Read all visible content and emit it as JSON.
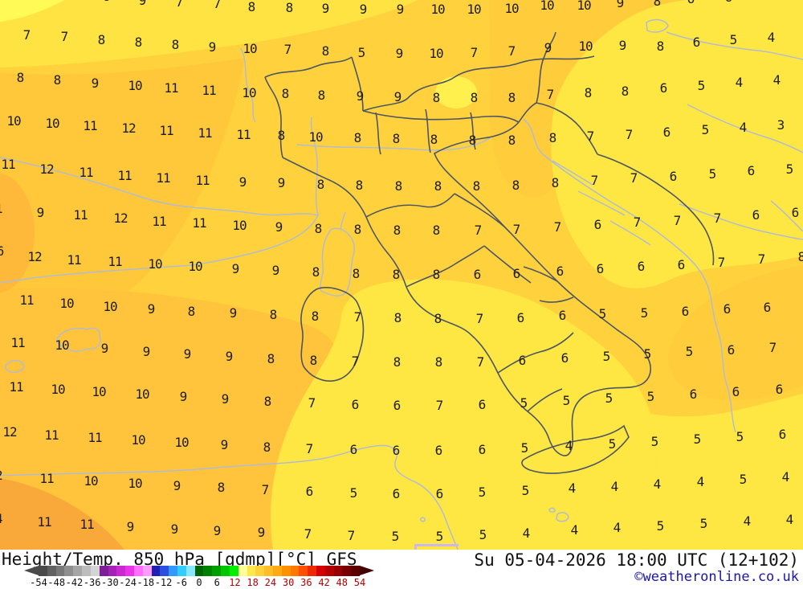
{
  "map": {
    "description": "850 hPa temperature field over Italy and central Mediterranean, GFS model",
    "colors": {
      "base_yellow": "#FFD23D",
      "bright_yellow": "#FFE743",
      "pale_yellow": "#FFFA55",
      "amber": "#FFC83B",
      "deep_amber": "#F8A93A",
      "border_dark": "#4d5563",
      "coast_light": "#b3bccf",
      "number_color": "#1c1c1c"
    },
    "temps": [
      [
        9,
        133,
        -4
      ],
      [
        9,
        177,
        1
      ],
      [
        7,
        223,
        3
      ],
      [
        7,
        270,
        5
      ],
      [
        8,
        313,
        9
      ],
      [
        8,
        360,
        10
      ],
      [
        9,
        405,
        11
      ],
      [
        9,
        452,
        12
      ],
      [
        9,
        498,
        12
      ],
      [
        10,
        545,
        12
      ],
      [
        10,
        590,
        12
      ],
      [
        10,
        637,
        11
      ],
      [
        10,
        681,
        7
      ],
      [
        10,
        727,
        7
      ],
      [
        9,
        772,
        4
      ],
      [
        8,
        818,
        2
      ],
      [
        6,
        860,
        -1
      ],
      [
        6,
        907,
        -3
      ],
      [
        7,
        33,
        44
      ],
      [
        7,
        80,
        46
      ],
      [
        8,
        126,
        50
      ],
      [
        8,
        172,
        53
      ],
      [
        8,
        218,
        56
      ],
      [
        9,
        264,
        59
      ],
      [
        10,
        311,
        61
      ],
      [
        7,
        358,
        62
      ],
      [
        8,
        405,
        64
      ],
      [
        5,
        450,
        66
      ],
      [
        9,
        497,
        67
      ],
      [
        10,
        543,
        67
      ],
      [
        7,
        590,
        66
      ],
      [
        7,
        637,
        64
      ],
      [
        9,
        682,
        60
      ],
      [
        10,
        729,
        58
      ],
      [
        9,
        775,
        57
      ],
      [
        8,
        822,
        58
      ],
      [
        6,
        867,
        53
      ],
      [
        5,
        913,
        50
      ],
      [
        4,
        960,
        47
      ],
      [
        8,
        25,
        97
      ],
      [
        8,
        71,
        100
      ],
      [
        9,
        118,
        104
      ],
      [
        10,
        168,
        107
      ],
      [
        11,
        213,
        110
      ],
      [
        11,
        260,
        113
      ],
      [
        10,
        310,
        116
      ],
      [
        8,
        355,
        117
      ],
      [
        8,
        400,
        119
      ],
      [
        9,
        448,
        120
      ],
      [
        9,
        495,
        121
      ],
      [
        8,
        543,
        122
      ],
      [
        8,
        590,
        122
      ],
      [
        8,
        637,
        122
      ],
      [
        7,
        685,
        118
      ],
      [
        8,
        732,
        116
      ],
      [
        8,
        778,
        114
      ],
      [
        6,
        826,
        110
      ],
      [
        5,
        873,
        107
      ],
      [
        4,
        920,
        103
      ],
      [
        4,
        967,
        100
      ],
      [
        10,
        17,
        151
      ],
      [
        10,
        65,
        154
      ],
      [
        11,
        112,
        157
      ],
      [
        12,
        160,
        160
      ],
      [
        11,
        207,
        163
      ],
      [
        11,
        255,
        166
      ],
      [
        11,
        303,
        168
      ],
      [
        8,
        350,
        169
      ],
      [
        10,
        393,
        171
      ],
      [
        8,
        445,
        172
      ],
      [
        8,
        493,
        173
      ],
      [
        8,
        540,
        174
      ],
      [
        8,
        588,
        175
      ],
      [
        8,
        637,
        175
      ],
      [
        8,
        688,
        172
      ],
      [
        7,
        735,
        170
      ],
      [
        7,
        783,
        168
      ],
      [
        6,
        830,
        165
      ],
      [
        5,
        878,
        162
      ],
      [
        4,
        925,
        159
      ],
      [
        3,
        972,
        156
      ],
      [
        11,
        10,
        205
      ],
      [
        12,
        58,
        211
      ],
      [
        11,
        107,
        215
      ],
      [
        11,
        155,
        219
      ],
      [
        11,
        203,
        222
      ],
      [
        11,
        252,
        225
      ],
      [
        9,
        302,
        227
      ],
      [
        9,
        350,
        228
      ],
      [
        8,
        399,
        230
      ],
      [
        8,
        447,
        231
      ],
      [
        8,
        496,
        232
      ],
      [
        8,
        545,
        232
      ],
      [
        8,
        593,
        232
      ],
      [
        8,
        642,
        231
      ],
      [
        8,
        691,
        228
      ],
      [
        7,
        740,
        225
      ],
      [
        7,
        789,
        222
      ],
      [
        6,
        838,
        220
      ],
      [
        5,
        887,
        217
      ],
      [
        6,
        935,
        213
      ],
      [
        5,
        983,
        211
      ],
      [
        11,
        -6,
        260
      ],
      [
        9,
        50,
        265
      ],
      [
        11,
        100,
        268
      ],
      [
        12,
        150,
        272
      ],
      [
        11,
        198,
        276
      ],
      [
        11,
        248,
        278
      ],
      [
        10,
        298,
        281
      ],
      [
        9,
        347,
        283
      ],
      [
        8,
        396,
        285
      ],
      [
        8,
        445,
        286
      ],
      [
        8,
        494,
        287
      ],
      [
        8,
        543,
        287
      ],
      [
        7,
        595,
        287
      ],
      [
        7,
        643,
        286
      ],
      [
        7,
        694,
        283
      ],
      [
        6,
        744,
        280
      ],
      [
        7,
        793,
        277
      ],
      [
        7,
        843,
        275
      ],
      [
        7,
        893,
        272
      ],
      [
        6,
        941,
        268
      ],
      [
        6,
        990,
        265
      ],
      [
        6,
        0,
        313
      ],
      [
        12,
        43,
        320
      ],
      [
        11,
        92,
        324
      ],
      [
        11,
        143,
        326
      ],
      [
        10,
        193,
        329
      ],
      [
        10,
        243,
        332
      ],
      [
        9,
        293,
        335
      ],
      [
        9,
        343,
        337
      ],
      [
        8,
        393,
        339
      ],
      [
        8,
        443,
        341
      ],
      [
        8,
        493,
        342
      ],
      [
        8,
        543,
        342
      ],
      [
        6,
        594,
        342
      ],
      [
        6,
        643,
        341
      ],
      [
        6,
        697,
        338
      ],
      [
        6,
        747,
        335
      ],
      [
        6,
        798,
        332
      ],
      [
        6,
        848,
        330
      ],
      [
        7,
        898,
        327
      ],
      [
        7,
        948,
        323
      ],
      [
        8,
        998,
        320
      ],
      [
        11,
        33,
        374
      ],
      [
        10,
        83,
        378
      ],
      [
        10,
        137,
        382
      ],
      [
        9,
        188,
        385
      ],
      [
        8,
        238,
        388
      ],
      [
        9,
        290,
        390
      ],
      [
        8,
        340,
        392
      ],
      [
        8,
        392,
        394
      ],
      [
        7,
        445,
        395
      ],
      [
        8,
        495,
        396
      ],
      [
        8,
        545,
        397
      ],
      [
        7,
        597,
        397
      ],
      [
        6,
        648,
        396
      ],
      [
        6,
        700,
        393
      ],
      [
        5,
        750,
        391
      ],
      [
        5,
        802,
        390
      ],
      [
        6,
        853,
        388
      ],
      [
        6,
        905,
        385
      ],
      [
        6,
        955,
        383
      ],
      [
        11,
        22,
        427
      ],
      [
        10,
        77,
        430
      ],
      [
        9,
        130,
        434
      ],
      [
        9,
        182,
        438
      ],
      [
        9,
        233,
        441
      ],
      [
        9,
        285,
        444
      ],
      [
        8,
        337,
        447
      ],
      [
        8,
        390,
        449
      ],
      [
        7,
        442,
        450
      ],
      [
        8,
        494,
        451
      ],
      [
        8,
        546,
        451
      ],
      [
        7,
        598,
        451
      ],
      [
        6,
        650,
        449
      ],
      [
        6,
        703,
        446
      ],
      [
        5,
        755,
        444
      ],
      [
        5,
        806,
        441
      ],
      [
        5,
        858,
        438
      ],
      [
        6,
        910,
        436
      ],
      [
        7,
        962,
        433
      ],
      [
        11,
        20,
        482
      ],
      [
        10,
        72,
        485
      ],
      [
        10,
        123,
        488
      ],
      [
        10,
        177,
        491
      ],
      [
        9,
        228,
        494
      ],
      [
        9,
        280,
        497
      ],
      [
        8,
        333,
        500
      ],
      [
        7,
        388,
        502
      ],
      [
        6,
        442,
        504
      ],
      [
        6,
        494,
        505
      ],
      [
        7,
        547,
        505
      ],
      [
        6,
        600,
        504
      ],
      [
        5,
        652,
        502
      ],
      [
        5,
        705,
        499
      ],
      [
        5,
        758,
        496
      ],
      [
        5,
        810,
        494
      ],
      [
        6,
        863,
        491
      ],
      [
        6,
        916,
        488
      ],
      [
        6,
        970,
        485
      ],
      [
        12,
        12,
        538
      ],
      [
        11,
        64,
        542
      ],
      [
        11,
        118,
        545
      ],
      [
        10,
        172,
        548
      ],
      [
        10,
        226,
        551
      ],
      [
        9,
        279,
        554
      ],
      [
        8,
        332,
        557
      ],
      [
        7,
        385,
        559
      ],
      [
        6,
        440,
        560
      ],
      [
        6,
        493,
        561
      ],
      [
        6,
        546,
        561
      ],
      [
        6,
        600,
        560
      ],
      [
        5,
        653,
        558
      ],
      [
        4,
        708,
        555
      ],
      [
        5,
        762,
        553
      ],
      [
        5,
        815,
        550
      ],
      [
        5,
        868,
        547
      ],
      [
        5,
        921,
        544
      ],
      [
        6,
        974,
        541
      ],
      [
        12,
        -6,
        592
      ],
      [
        11,
        58,
        596
      ],
      [
        10,
        113,
        599
      ],
      [
        10,
        168,
        602
      ],
      [
        9,
        220,
        605
      ],
      [
        8,
        275,
        607
      ],
      [
        7,
        330,
        610
      ],
      [
        6,
        385,
        612
      ],
      [
        5,
        440,
        614
      ],
      [
        6,
        493,
        615
      ],
      [
        6,
        547,
        615
      ],
      [
        5,
        600,
        613
      ],
      [
        5,
        654,
        611
      ],
      [
        4,
        712,
        608
      ],
      [
        4,
        765,
        606
      ],
      [
        4,
        818,
        603
      ],
      [
        4,
        872,
        600
      ],
      [
        5,
        925,
        597
      ],
      [
        4,
        978,
        594
      ],
      [
        14,
        -6,
        646
      ],
      [
        11,
        55,
        650
      ],
      [
        11,
        108,
        653
      ],
      [
        9,
        162,
        656
      ],
      [
        9,
        217,
        659
      ],
      [
        9,
        270,
        661
      ],
      [
        9,
        325,
        663
      ],
      [
        7,
        383,
        665
      ],
      [
        7,
        437,
        667
      ],
      [
        5,
        492,
        668
      ],
      [
        5,
        547,
        668
      ],
      [
        5,
        601,
        666
      ],
      [
        4,
        655,
        664
      ],
      [
        4,
        715,
        660
      ],
      [
        4,
        768,
        657
      ],
      [
        5,
        822,
        655
      ],
      [
        5,
        876,
        652
      ],
      [
        4,
        930,
        649
      ],
      [
        4,
        983,
        647
      ]
    ]
  },
  "legend": {
    "title": "Height/Temp. 850 hPa [gdmp][°C] GFS",
    "datetime": "Su 05-04-2026 18:00 UTC (12+102)",
    "copyright": "©weatheronline.co.uk",
    "unit": "°C",
    "ticks": [
      "-54",
      "-48",
      "-42",
      "-36",
      "-30",
      "-24",
      "-18",
      "-12",
      "-6",
      "0",
      "6",
      "12",
      "18",
      "24",
      "30",
      "36",
      "42",
      "48",
      "54"
    ],
    "red_from": 12,
    "cells": [
      "#4a4a4a",
      "#616161",
      "#787878",
      "#8f8f8f",
      "#a6a6a6",
      "#bdbdbd",
      "#d4d4d4",
      "#7d1f96",
      "#a523b4",
      "#cc28d2",
      "#e935e9",
      "#ff6eff",
      "#ff9bff",
      "#1f1fb4",
      "#2b50e0",
      "#3399ff",
      "#33ccff",
      "#8ae6ff",
      "#006400",
      "#008200",
      "#00a000",
      "#00c800",
      "#00f000",
      "#ffff96",
      "#ffe74d",
      "#ffd23c",
      "#ffbe28",
      "#ffa914",
      "#ff9100",
      "#ff7800",
      "#ff5000",
      "#f02800",
      "#d70000",
      "#b40000",
      "#960000",
      "#780000",
      "#5c0000"
    ]
  }
}
